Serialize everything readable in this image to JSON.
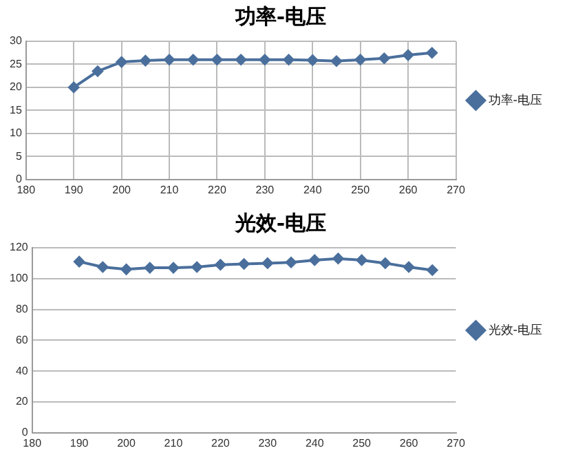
{
  "chart_data": [
    {
      "type": "line",
      "title": "功率-电压",
      "x": [
        190,
        195,
        200,
        205,
        210,
        215,
        220,
        225,
        230,
        235,
        240,
        245,
        250,
        255,
        260,
        265
      ],
      "series": [
        {
          "name": "功率-电压",
          "color": "#4a6f9c",
          "values": [
            20,
            23.5,
            25.5,
            25.8,
            26,
            26,
            26,
            26,
            26,
            26,
            25.9,
            25.7,
            26,
            26.3,
            27,
            27.5
          ]
        }
      ],
      "xlim": [
        180,
        270
      ],
      "xticks": [
        180,
        190,
        200,
        210,
        220,
        230,
        240,
        250,
        260,
        270
      ],
      "ylim": [
        0,
        30
      ],
      "yticks": [
        0,
        5,
        10,
        15,
        20,
        25,
        30
      ],
      "grid": true,
      "legend": "right",
      "marker": "diamond",
      "line_style": "solid"
    },
    {
      "type": "line",
      "title": "光效-电压",
      "x": [
        190,
        195,
        200,
        205,
        210,
        215,
        220,
        225,
        230,
        235,
        240,
        245,
        250,
        255,
        260,
        265
      ],
      "series": [
        {
          "name": "光效-电压",
          "color": "#4a6f9c",
          "values": [
            111,
            107.5,
            106,
            107,
            107,
            107.5,
            109,
            109.5,
            110,
            110.5,
            112,
            113,
            112,
            110,
            107.5,
            105.5
          ]
        }
      ],
      "xlim": [
        180,
        270
      ],
      "xticks": [
        180,
        190,
        200,
        210,
        220,
        230,
        240,
        250,
        260,
        270
      ],
      "ylim": [
        0,
        120
      ],
      "yticks": [
        0,
        20,
        40,
        60,
        80,
        100,
        120
      ],
      "grid": "y",
      "legend": "right",
      "marker": "diamond",
      "line_style": "solid"
    }
  ]
}
